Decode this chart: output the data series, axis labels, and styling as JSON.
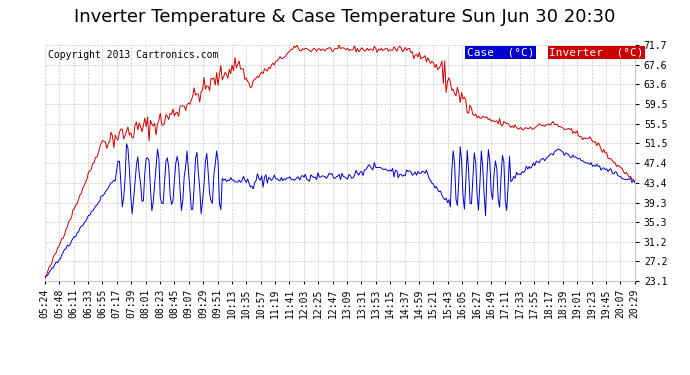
{
  "title": "Inverter Temperature & Case Temperature Sun Jun 30 20:30",
  "copyright": "Copyright 2013 Cartronics.com",
  "legend_case_label": "Case  (°C)",
  "legend_inverter_label": "Inverter  (°C)",
  "case_color": "#0000cc",
  "inverter_color": "#cc0000",
  "legend_case_bg": "#0000cc",
  "legend_inverter_bg": "#cc0000",
  "background_color": "#ffffff",
  "plot_bg_color": "#ffffff",
  "grid_color": "#bbbbbb",
  "yticks": [
    23.1,
    27.2,
    31.2,
    35.3,
    39.3,
    43.4,
    47.4,
    51.5,
    55.5,
    59.5,
    63.6,
    67.6,
    71.7
  ],
  "xtick_labels": [
    "05:24",
    "05:48",
    "06:11",
    "06:33",
    "06:55",
    "07:17",
    "07:39",
    "08:01",
    "08:23",
    "08:45",
    "09:07",
    "09:29",
    "09:51",
    "10:13",
    "10:35",
    "10:57",
    "11:19",
    "11:41",
    "12:03",
    "12:25",
    "12:47",
    "13:09",
    "13:31",
    "13:53",
    "14:15",
    "14:37",
    "14:59",
    "15:21",
    "15:43",
    "16:05",
    "16:27",
    "16:49",
    "17:11",
    "17:33",
    "17:55",
    "18:17",
    "18:39",
    "19:01",
    "19:23",
    "19:45",
    "20:07",
    "20:29"
  ],
  "ylim_min": 23.1,
  "ylim_max": 71.7,
  "title_fontsize": 13,
  "copyright_fontsize": 7,
  "tick_fontsize": 7,
  "legend_fontsize": 8
}
